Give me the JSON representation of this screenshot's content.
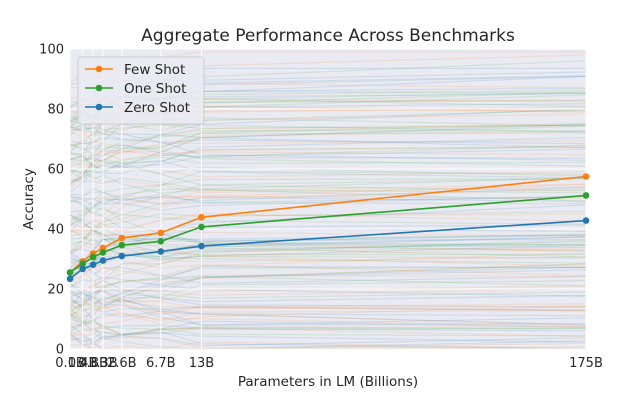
{
  "chart_data": {
    "type": "line",
    "title": "Aggregate Performance Across Benchmarks",
    "xlabel": "Parameters in LM (Billions)",
    "ylabel": "Accuracy",
    "categories": [
      "0.1B",
      "0.4B",
      "0.8B",
      "1.3B",
      "2.6B",
      "6.7B",
      "13B",
      "175B"
    ],
    "x": [
      0.1,
      0.4,
      0.8,
      1.3,
      2.6,
      6.7,
      13,
      175
    ],
    "x_scale": "sqrt",
    "ylim": [
      0,
      100
    ],
    "yticks": [
      0,
      20,
      40,
      60,
      80,
      100
    ],
    "grid": true,
    "legend_position": "top-left",
    "series": [
      {
        "name": "Few Shot",
        "color": "#ff7f0e",
        "values": [
          25.5,
          29.2,
          31.8,
          33.7,
          37.0,
          38.7,
          43.9,
          57.5
        ]
      },
      {
        "name": "One Shot",
        "color": "#2ca02c",
        "values": [
          25.5,
          28.4,
          30.6,
          32.2,
          34.6,
          35.9,
          40.7,
          51.2
        ]
      },
      {
        "name": "Zero Shot",
        "color": "#1f77b4",
        "values": [
          23.4,
          26.7,
          28.1,
          29.5,
          31.0,
          32.5,
          34.3,
          42.8
        ]
      }
    ]
  }
}
